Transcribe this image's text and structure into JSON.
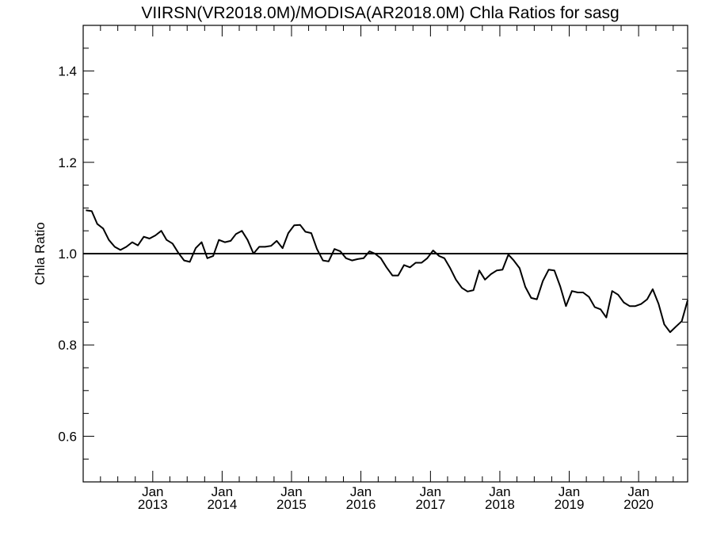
{
  "chart_data": {
    "type": "line",
    "title": "VIIRSN(VR2018.0M)/MODISA(AR2018.0M)  Chla Ratios for sasg",
    "xlabel": "",
    "ylabel": "Chla Ratio",
    "ylim": [
      0.5,
      1.5
    ],
    "xlim": [
      "2012-01-01",
      "2020-09-15"
    ],
    "y_ticks": [
      "0.6",
      "0.8",
      "1.0",
      "1.2",
      "1.4"
    ],
    "x_tick_labels": [
      {
        "line1": "Jan",
        "line2": "2013",
        "date": "2013-01-01"
      },
      {
        "line1": "Jan",
        "line2": "2014",
        "date": "2014-01-01"
      },
      {
        "line1": "Jan",
        "line2": "2015",
        "date": "2015-01-01"
      },
      {
        "line1": "Jan",
        "line2": "2016",
        "date": "2016-01-01"
      },
      {
        "line1": "Jan",
        "line2": "2017",
        "date": "2017-01-01"
      },
      {
        "line1": "Jan",
        "line2": "2018",
        "date": "2018-01-01"
      },
      {
        "line1": "Jan",
        "line2": "2019",
        "date": "2019-01-01"
      },
      {
        "line1": "Jan",
        "line2": "2020",
        "date": "2020-01-01"
      }
    ],
    "reference_line": 1.0,
    "grid": false,
    "series": [
      {
        "color": "#000000",
        "x": [
          "2012-01",
          "2012-02",
          "2012-03",
          "2012-04",
          "2012-05",
          "2012-06",
          "2012-07",
          "2012-08",
          "2012-09",
          "2012-10",
          "2012-11",
          "2012-12",
          "2013-01",
          "2013-02",
          "2013-03",
          "2013-04",
          "2013-05",
          "2013-06",
          "2013-07",
          "2013-08",
          "2013-09",
          "2013-10",
          "2013-11",
          "2013-12",
          "2014-01",
          "2014-02",
          "2014-03",
          "2014-04",
          "2014-05",
          "2014-06",
          "2014-07",
          "2014-08",
          "2014-09",
          "2014-10",
          "2014-11",
          "2014-12",
          "2015-01",
          "2015-02",
          "2015-03",
          "2015-04",
          "2015-05",
          "2015-06",
          "2015-07",
          "2015-08",
          "2015-09",
          "2015-10",
          "2015-11",
          "2015-12",
          "2016-01",
          "2016-02",
          "2016-03",
          "2016-04",
          "2016-05",
          "2016-06",
          "2016-07",
          "2016-08",
          "2016-09",
          "2016-10",
          "2016-11",
          "2016-12",
          "2017-01",
          "2017-02",
          "2017-03",
          "2017-04",
          "2017-05",
          "2017-06",
          "2017-07",
          "2017-08",
          "2017-09",
          "2017-10",
          "2017-11",
          "2017-12",
          "2018-01",
          "2018-02",
          "2018-03",
          "2018-04",
          "2018-05",
          "2018-06",
          "2018-07",
          "2018-08",
          "2018-09",
          "2018-10",
          "2018-11",
          "2018-12",
          "2019-01",
          "2019-02",
          "2019-03",
          "2019-04",
          "2019-05",
          "2019-06",
          "2019-07",
          "2019-08",
          "2019-09",
          "2019-10",
          "2019-11",
          "2019-12",
          "2020-01",
          "2020-02",
          "2020-03",
          "2020-04",
          "2020-05",
          "2020-06",
          "2020-07",
          "2020-08",
          "2020-09"
        ],
        "values": [
          1.095,
          1.093,
          1.065,
          1.055,
          1.03,
          1.015,
          1.008,
          1.015,
          1.025,
          1.018,
          1.037,
          1.033,
          1.04,
          1.05,
          1.03,
          1.022,
          1.002,
          0.985,
          0.982,
          1.012,
          1.025,
          0.99,
          0.995,
          1.03,
          1.025,
          1.028,
          1.043,
          1.05,
          1.03,
          1.0,
          1.015,
          1.015,
          1.017,
          1.028,
          1.012,
          1.045,
          1.062,
          1.063,
          1.048,
          1.045,
          1.01,
          0.985,
          0.983,
          1.01,
          1.005,
          0.99,
          0.985,
          0.988,
          0.99,
          1.005,
          1.0,
          0.99,
          0.97,
          0.952,
          0.952,
          0.975,
          0.97,
          0.98,
          0.98,
          0.99,
          1.007,
          0.995,
          0.99,
          0.968,
          0.943,
          0.925,
          0.917,
          0.92,
          0.963,
          0.943,
          0.955,
          0.963,
          0.965,
          0.998,
          0.985,
          0.968,
          0.927,
          0.903,
          0.9,
          0.94,
          0.965,
          0.963,
          0.928,
          0.885,
          0.918,
          0.915,
          0.915,
          0.905,
          0.883,
          0.878,
          0.86,
          0.918,
          0.91,
          0.893,
          0.885,
          0.885,
          0.89,
          0.9,
          0.922,
          0.89,
          0.845,
          0.828,
          0.84,
          0.852,
          0.898
        ]
      }
    ]
  }
}
